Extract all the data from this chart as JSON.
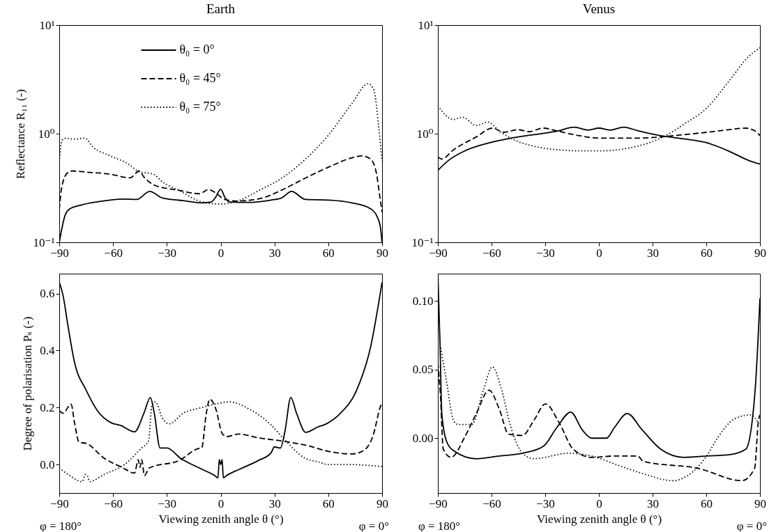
{
  "chart_data": [
    {
      "type": "line",
      "title": "Earth",
      "ylabel": "Reflectance R₁₁ (-)",
      "legend": "top",
      "log": "y",
      "xlim": [
        -90,
        90
      ],
      "xticks": [
        -90,
        -60,
        -30,
        0,
        30,
        60,
        90
      ],
      "ylim": [
        0.1,
        10
      ],
      "yticks": [
        {
          "value": 0.1,
          "label": "10⁻¹"
        },
        {
          "value": 1,
          "label": "10⁰"
        },
        {
          "value": 10,
          "label": "10¹"
        }
      ],
      "series": [
        {
          "name": "θ₀ = 0°",
          "color": "#000000",
          "line_style": "solid",
          "x": [
            -90,
            -86.6,
            -84,
            -77.6,
            -68.6,
            -54.4,
            -46.7,
            -39.6,
            -32.5,
            -20.9,
            -10.6,
            -5.4,
            -2.8,
            0,
            2.3,
            4.9,
            15.2,
            28.1,
            33.9,
            39.5,
            47.4,
            60.3,
            73.2,
            83.5,
            87.4,
            89,
            90
          ],
          "values": [
            0.1,
            0.18,
            0.204,
            0.221,
            0.236,
            0.25,
            0.248,
            0.294,
            0.256,
            0.242,
            0.231,
            0.235,
            0.26,
            0.309,
            0.26,
            0.235,
            0.233,
            0.245,
            0.256,
            0.294,
            0.248,
            0.245,
            0.231,
            0.204,
            0.17,
            0.14,
            0.1
          ]
        },
        {
          "name": "θ₀ = 45°",
          "color": "#000000",
          "line_style": "dashed",
          "x": [
            -90,
            -88.5,
            -85.4,
            -82.8,
            -75,
            -62,
            -50.5,
            -45.4,
            -42.8,
            -36.4,
            -23.5,
            -11.9,
            -6.7,
            -2.8,
            2.3,
            8.8,
            21.7,
            34.6,
            47.4,
            60.3,
            73.2,
            78.4,
            83.5,
            86.8,
            88.7,
            90
          ],
          "values": [
            0.2,
            0.33,
            0.436,
            0.454,
            0.443,
            0.425,
            0.392,
            0.454,
            0.4,
            0.333,
            0.302,
            0.28,
            0.306,
            0.285,
            0.248,
            0.24,
            0.252,
            0.306,
            0.392,
            0.493,
            0.6,
            0.624,
            0.586,
            0.436,
            0.267,
            0.19
          ]
        },
        {
          "name": "θ₀ = 75°",
          "color": "#000000",
          "line_style": "dotted",
          "x": [
            -90,
            -88.5,
            -86.1,
            -82.2,
            -75.7,
            -71.1,
            -62.1,
            -51.8,
            -45.4,
            -37.6,
            -32.5,
            -23.5,
            -10.6,
            0,
            10,
            21.7,
            34.6,
            47.4,
            60.3,
            73.2,
            82.3,
            85.5,
            88.1,
            90
          ],
          "values": [
            0.55,
            0.87,
            0.91,
            0.89,
            0.91,
            0.75,
            0.63,
            0.53,
            0.447,
            0.425,
            0.36,
            0.302,
            0.236,
            0.225,
            0.242,
            0.302,
            0.395,
            0.586,
            0.98,
            1.9,
            2.89,
            2.5,
            1.16,
            0.56
          ]
        }
      ]
    },
    {
      "type": "line",
      "title": "Venus",
      "log": "y",
      "xlim": [
        -90,
        90
      ],
      "xticks": [
        -90,
        -60,
        -30,
        0,
        30,
        60,
        90
      ],
      "ylim": [
        0.1,
        10
      ],
      "yticks": [
        {
          "value": 0.1,
          "label": "10⁻¹"
        },
        {
          "value": 1,
          "label": "10⁰"
        },
        {
          "value": 10,
          "label": "10¹"
        }
      ],
      "series": [
        {
          "color": "#000000",
          "line_style": "solid",
          "x": [
            -90,
            -83.9,
            -74.9,
            -62,
            -49.2,
            -36.3,
            -23.4,
            -13.8,
            -6,
            0,
            6.2,
            13.9,
            21.6,
            34.5,
            47.4,
            60.2,
            73.1,
            83.4,
            90
          ],
          "values": [
            0.46,
            0.57,
            0.695,
            0.818,
            0.91,
            0.98,
            1.055,
            1.15,
            1.08,
            1.125,
            1.08,
            1.15,
            1.066,
            0.957,
            0.897,
            0.826,
            0.685,
            0.57,
            0.525
          ]
        },
        {
          "color": "#000000",
          "line_style": "dashed",
          "x": [
            -90,
            -87.8,
            -81.3,
            -68.5,
            -59.5,
            -53,
            -45.3,
            -38.9,
            -31.1,
            -23.4,
            -10.6,
            0,
            21.6,
            34.5,
            47.4,
            60.2,
            73.1,
            82.1,
            87.3,
            90
          ],
          "values": [
            0.61,
            0.585,
            0.71,
            0.934,
            1.125,
            1.03,
            1.09,
            1.045,
            1.125,
            1.06,
            0.957,
            0.911,
            0.911,
            0.934,
            0.98,
            1.03,
            1.09,
            1.125,
            1.06,
            0.957
          ]
        },
        {
          "color": "#000000",
          "line_style": "dotted",
          "x": [
            -90,
            -81.3,
            -76.2,
            -68.5,
            -62,
            -55.6,
            -46.6,
            -36.3,
            -23.4,
            -10.6,
            2.3,
            15.2,
            28.1,
            38.4,
            47.4,
            60.2,
            73.1,
            83.4,
            90
          ],
          "values": [
            1.81,
            1.35,
            1.42,
            1.19,
            1.28,
            1.055,
            0.867,
            0.767,
            0.713,
            0.696,
            0.696,
            0.73,
            0.826,
            0.98,
            1.22,
            1.72,
            3.11,
            5.08,
            6.18
          ]
        }
      ]
    },
    {
      "type": "line",
      "xlabel": "Viewing zenith angle θ (°)",
      "ylabel": "Degree of polarisation Pₛ (-)",
      "annotations": [
        "φ = 180°",
        "φ = 0°"
      ],
      "xlim": [
        -90,
        90
      ],
      "xticks": [
        -90,
        -60,
        -30,
        0,
        30,
        60,
        90
      ],
      "ylim": [
        -0.1,
        0.67
      ],
      "yticks": [
        {
          "value": 0,
          "label": "0.0"
        },
        0.2,
        0.4,
        0.6
      ],
      "series": [
        {
          "color": "#000000",
          "line_style": "solid",
          "x": [
            -90,
            -87.9,
            -85.4,
            -81.5,
            -75,
            -68.6,
            -60.9,
            -55.7,
            -48,
            -42.8,
            -39.2,
            -37,
            -33.8,
            -29.9,
            -22.2,
            -15,
            -10,
            -3,
            -1.5,
            -0.8,
            0,
            0.8,
            1.5,
            3,
            10,
            21,
            28.1,
            30,
            33.3,
            35.8,
            39.1,
            42.3,
            47.4,
            53.9,
            59,
            66.8,
            75.8,
            83.5,
            90
          ],
          "values": [
            0.64,
            0.594,
            0.497,
            0.359,
            0.261,
            0.188,
            0.146,
            0.137,
            0.115,
            0.18,
            0.235,
            0.18,
            0.058,
            0.058,
            0.021,
            -0.003,
            -0.018,
            -0.04,
            -0.047,
            0.017,
            0,
            0.017,
            -0.047,
            -0.04,
            -0.018,
            0.014,
            0.041,
            0.062,
            0.058,
            0.115,
            0.235,
            0.18,
            0.113,
            0.131,
            0.143,
            0.18,
            0.261,
            0.41,
            0.64
          ]
        },
        {
          "color": "#000000",
          "line_style": "dashed",
          "x": [
            -90,
            -87.9,
            -83.4,
            -81.5,
            -78.9,
            -75,
            -64.7,
            -55,
            -48,
            -46,
            -45,
            -44,
            -42.5,
            -39.8,
            -23.2,
            -12,
            -10.6,
            -8,
            -6.1,
            -2.8,
            1,
            3.6,
            10,
            21.7,
            34.6,
            47.4,
            60.3,
            73.2,
            79.7,
            84.8,
            89.4,
            90
          ],
          "values": [
            0.19,
            0.18,
            0.212,
            0.147,
            0.078,
            0.074,
            0.021,
            -0.01,
            -0.03,
            0.017,
            -0.01,
            0.017,
            -0.039,
            -0.012,
            0.014,
            0.057,
            0.058,
            0.18,
            0.229,
            0.197,
            0.107,
            0.098,
            0.107,
            0.093,
            0.082,
            0.068,
            0.046,
            0.037,
            0.049,
            0.098,
            0.208,
            0.215
          ]
        },
        {
          "color": "#000000",
          "line_style": "dotted",
          "x": [
            -90,
            -85,
            -77.1,
            -75.5,
            -74.3,
            -73,
            -65,
            -53.6,
            -44.1,
            -40.2,
            -38.3,
            -36.4,
            -32.5,
            -28.6,
            -20.9,
            -10.6,
            0,
            4.9,
            15.2,
            28.1,
            35.8,
            47.4,
            54,
            60,
            70.8,
            90
          ],
          "values": [
            -0.012,
            -0.035,
            -0.06,
            -0.035,
            -0.04,
            -0.06,
            -0.035,
            0,
            0.058,
            0.083,
            0.211,
            0.22,
            0.163,
            0.143,
            0.18,
            0.2,
            0.216,
            0.22,
            0.197,
            0.139,
            0.086,
            0.021,
            0.01,
            0,
            0,
            -0.007
          ]
        }
      ]
    },
    {
      "type": "line",
      "xlabel": "Viewing zenith angle θ (°)",
      "annotations": [
        "φ = 180°",
        "φ = 0°"
      ],
      "xlim": [
        -90,
        90
      ],
      "xticks": [
        -90,
        -60,
        -30,
        0,
        30,
        60,
        90
      ],
      "ylim": [
        -0.04,
        0.12
      ],
      "yticks": [
        {
          "value": 0,
          "label": "0.00"
        },
        {
          "value": 0.05,
          "label": "0.05"
        },
        {
          "value": 0.1,
          "label": "0.10"
        }
      ],
      "series": [
        {
          "color": "#000000",
          "line_style": "solid",
          "x": [
            -90,
            -88.8,
            -87.8,
            -85.2,
            -81.3,
            -68.5,
            -55.6,
            -42.7,
            -31.1,
            -23.4,
            -15.7,
            -9.3,
            -4.1,
            4.2,
            8.8,
            15.8,
            24.2,
            34.5,
            47.4,
            60.2,
            73.1,
            82.1,
            87.3,
            90
          ],
          "values": [
            0.12,
            0.069,
            0.018,
            -0.002,
            -0.009,
            -0.015,
            -0.013,
            -0.011,
            -0.006,
            0.008,
            0.019,
            0.006,
            0,
            0,
            0.008,
            0.018,
            0.006,
            -0.008,
            -0.014,
            -0.013,
            -0.012,
            -0.008,
            0.035,
            0.102
          ]
        },
        {
          "color": "#000000",
          "line_style": "dashed",
          "x": [
            -90,
            -88.5,
            -87,
            -82.6,
            -74.9,
            -68.5,
            -61.4,
            -55.6,
            -50.5,
            -42.7,
            -36.3,
            -29.9,
            -22.1,
            -14.4,
            -4.1,
            8.8,
            21.6,
            24.9,
            55.3,
            80,
            87,
            89.2,
            90
          ],
          "values": [
            0.055,
            0.03,
            -0.008,
            -0.014,
            0.001,
            0.018,
            0.035,
            0.021,
            0.003,
            0.002,
            0.013,
            0.025,
            0.011,
            -0.008,
            -0.014,
            -0.013,
            -0.013,
            -0.017,
            -0.022,
            -0.031,
            -0.022,
            0.013,
            0.017
          ]
        },
        {
          "color": "#000000",
          "line_style": "dotted",
          "x": [
            -88.4,
            -85.2,
            -81.3,
            -78.8,
            -71,
            -64.6,
            -59.5,
            -54.3,
            -49.2,
            -42.7,
            -36.3,
            -17,
            -4.1,
            11.2,
            25,
            41.4,
            50,
            60.2,
            66.7,
            75.7,
            84.7,
            89.2
          ],
          "values": [
            0.066,
            0.042,
            0.013,
            0.01,
            0.01,
            0.035,
            0.052,
            0.035,
            0.008,
            -0.011,
            -0.015,
            -0.011,
            -0.013,
            -0.02,
            -0.026,
            -0.031,
            -0.027,
            -0.013,
            0.001,
            0.014,
            0.017,
            0.011
          ]
        }
      ]
    }
  ]
}
